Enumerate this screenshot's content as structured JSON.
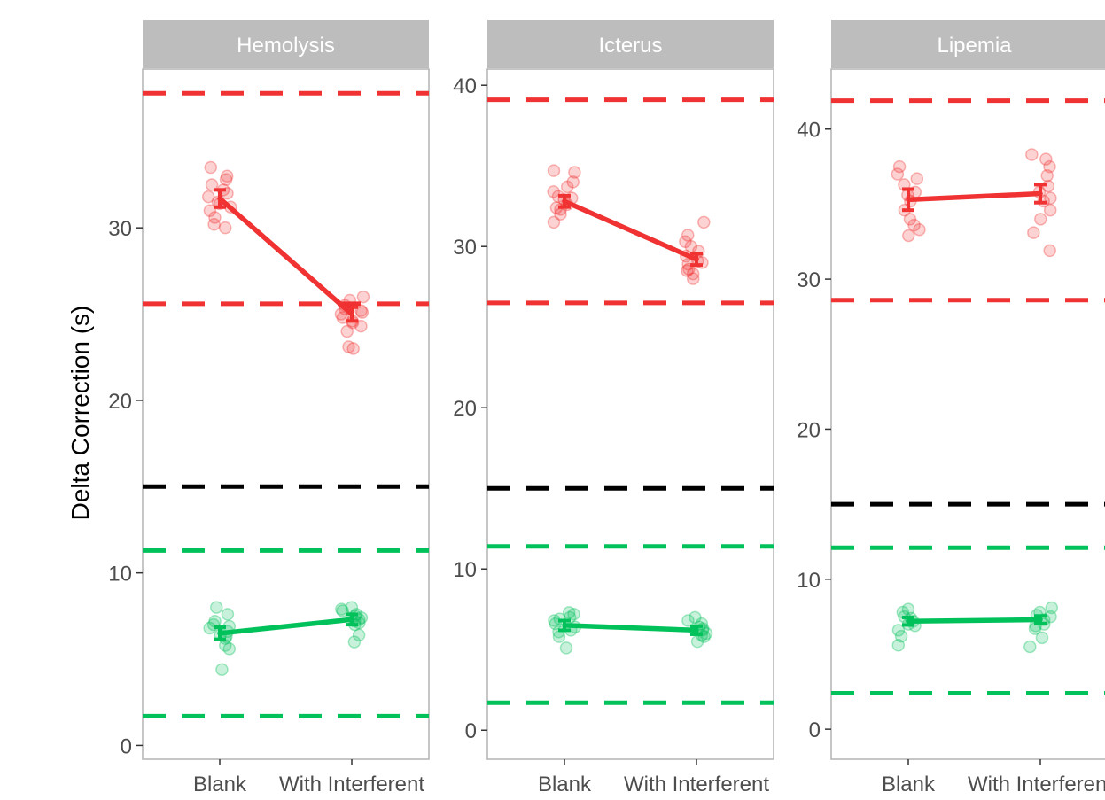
{
  "chart_data": {
    "type": "scatter",
    "ylabel": "Delta Correction (s)",
    "categories": [
      "Blank",
      "With Interferent"
    ],
    "colors": {
      "red": "#f03232",
      "green": "#00c15a",
      "black": "#000000",
      "strip": "#bdbdbd",
      "frame": "#b3b3b3"
    },
    "panels": [
      {
        "name": "Hemolysis",
        "ylim": [
          -0.8,
          39.2
        ],
        "yticks": [
          0,
          10,
          20,
          30
        ],
        "ref_lines": [
          {
            "y": 37.8,
            "color": "red"
          },
          {
            "y": 25.6,
            "color": "red"
          },
          {
            "y": 15.0,
            "color": "black"
          },
          {
            "y": 11.3,
            "color": "green"
          },
          {
            "y": 1.7,
            "color": "green"
          }
        ],
        "series": [
          {
            "color": "red",
            "means": [
              31.7,
              25.0
            ],
            "errors": [
              0.5,
              0.4
            ],
            "points": [
              [
                30.0,
                31.0,
                31.5,
                32.0,
                32.5,
                33.0,
                33.5,
                31.2,
                30.6,
                32.8,
                31.8,
                30.2,
                32.2,
                31.4
              ],
              [
                23.0,
                23.1,
                24.0,
                24.5,
                24.8,
                25.0,
                25.2,
                25.5,
                25.8,
                26.0,
                25.3,
                24.6,
                25.1,
                24.3
              ]
            ]
          },
          {
            "color": "green",
            "means": [
              6.5,
              7.3
            ],
            "errors": [
              0.35,
              0.3
            ],
            "points": [
              [
                4.4,
                5.6,
                5.8,
                6.2,
                6.4,
                6.6,
                6.9,
                7.0,
                7.2,
                7.6,
                8.0,
                6.3,
                6.8
              ],
              [
                6.0,
                6.4,
                7.0,
                7.2,
                7.4,
                7.6,
                7.8,
                8.0,
                7.1,
                7.5,
                7.3,
                7.9
              ]
            ]
          }
        ]
      },
      {
        "name": "Icterus",
        "ylim": [
          -1.8,
          41.0
        ],
        "yticks": [
          0,
          10,
          20,
          30,
          40
        ],
        "ref_lines": [
          {
            "y": 39.1,
            "color": "red"
          },
          {
            "y": 26.5,
            "color": "red"
          },
          {
            "y": 15.0,
            "color": "black"
          },
          {
            "y": 11.4,
            "color": "green"
          },
          {
            "y": 1.7,
            "color": "green"
          }
        ],
        "series": [
          {
            "color": "red",
            "means": [
              32.8,
              29.2
            ],
            "errors": [
              0.35,
              0.35
            ],
            "points": [
              [
                31.5,
                32.0,
                32.3,
                32.6,
                32.9,
                33.1,
                33.4,
                33.7,
                34.0,
                34.7,
                34.6,
                32.4,
                33.0
              ],
              [
                28.0,
                28.3,
                28.6,
                28.9,
                29.1,
                29.4,
                29.7,
                30.0,
                30.3,
                30.7,
                31.5,
                28.5,
                29.0
              ]
            ]
          },
          {
            "color": "green",
            "means": [
              6.5,
              6.2
            ],
            "errors": [
              0.3,
              0.25
            ],
            "points": [
              [
                5.1,
                5.8,
                6.1,
                6.4,
                6.6,
                6.8,
                7.0,
                7.2,
                7.3,
                6.2,
                6.9
              ],
              [
                5.5,
                5.8,
                6.0,
                6.2,
                6.4,
                6.6,
                6.8,
                7.0,
                5.9,
                6.3
              ]
            ]
          }
        ]
      },
      {
        "name": "Lipemia",
        "ylim": [
          -2.0,
          44.0
        ],
        "yticks": [
          0,
          10,
          20,
          30,
          40
        ],
        "ref_lines": [
          {
            "y": 41.9,
            "color": "red"
          },
          {
            "y": 28.6,
            "color": "red"
          },
          {
            "y": 15.0,
            "color": "black"
          },
          {
            "y": 12.1,
            "color": "green"
          },
          {
            "y": 2.4,
            "color": "green"
          }
        ],
        "series": [
          {
            "color": "red",
            "means": [
              35.3,
              35.7
            ],
            "errors": [
              0.7,
              0.6
            ],
            "points": [
              [
                32.9,
                33.3,
                34.0,
                34.6,
                35.2,
                35.8,
                36.3,
                36.7,
                37.0,
                37.5,
                35.6,
                33.6
              ],
              [
                31.9,
                33.1,
                34.0,
                34.6,
                35.2,
                35.8,
                36.2,
                36.9,
                37.5,
                38.0,
                38.3,
                35.4
              ]
            ]
          },
          {
            "color": "green",
            "means": [
              7.2,
              7.3
            ],
            "errors": [
              0.25,
              0.25
            ],
            "points": [
              [
                5.6,
                6.2,
                6.6,
                7.0,
                7.2,
                7.5,
                7.8,
                8.0,
                6.9,
                7.4
              ],
              [
                5.5,
                6.1,
                6.7,
                7.0,
                7.3,
                7.6,
                7.8,
                8.1,
                6.9,
                7.5
              ]
            ]
          }
        ]
      }
    ]
  }
}
